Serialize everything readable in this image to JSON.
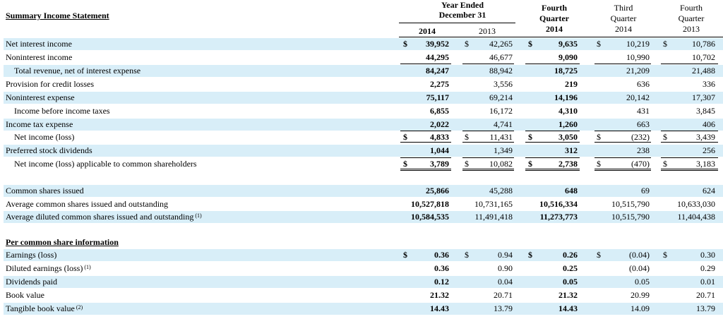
{
  "statement": {
    "title": "Summary Income Statement",
    "headers": {
      "year_ended": [
        "Year Ended",
        "December 31"
      ],
      "y2014": "2014",
      "y2013": "2013",
      "q4_2014": [
        "Fourth",
        "Quarter",
        "2014"
      ],
      "q3_2014": [
        "Third",
        "Quarter",
        "2014"
      ],
      "q4_2013": [
        "Fourth",
        "Quarter",
        "2013"
      ]
    },
    "rows": [
      {
        "label": "Net interest income",
        "indent": 0,
        "dollar": true,
        "values": [
          "39,952",
          "42,265",
          "9,635",
          "10,219",
          "10,786"
        ]
      },
      {
        "label": "Noninterest income",
        "indent": 0,
        "values": [
          "44,295",
          "46,677",
          "9,090",
          "10,990",
          "10,702"
        ]
      },
      {
        "label": "Total revenue, net of interest expense",
        "indent": 1,
        "values": [
          "84,247",
          "88,942",
          "18,725",
          "21,209",
          "21,488"
        ]
      },
      {
        "label": "Provision for credit losses",
        "indent": 0,
        "values": [
          "2,275",
          "3,556",
          "219",
          "636",
          "336"
        ]
      },
      {
        "label": "Noninterest expense",
        "indent": 0,
        "values": [
          "75,117",
          "69,214",
          "14,196",
          "20,142",
          "17,307"
        ]
      },
      {
        "label": "Income before income taxes",
        "indent": 1,
        "values": [
          "6,855",
          "16,172",
          "4,310",
          "431",
          "3,845"
        ]
      },
      {
        "label": "Income tax expense",
        "indent": 0,
        "values": [
          "2,022",
          "4,741",
          "1,260",
          "663",
          "406"
        ]
      },
      {
        "label": "Net income (loss)",
        "indent": 1,
        "dollar": true,
        "values": [
          "4,833",
          "11,431",
          "3,050",
          "(232)",
          "3,439"
        ]
      },
      {
        "label": "Preferred stock dividends",
        "indent": 0,
        "values": [
          "1,044",
          "1,349",
          "312",
          "238",
          "256"
        ]
      },
      {
        "label": "Net income (loss) applicable to common shareholders",
        "indent": 1,
        "dollar": true,
        "values": [
          "3,789",
          "10,082",
          "2,738",
          "(470)",
          "3,183"
        ]
      }
    ],
    "shares_rows": [
      {
        "label": "Common shares issued",
        "values": [
          "25,866",
          "45,288",
          "648",
          "69",
          "624"
        ]
      },
      {
        "label": "Average common shares issued and outstanding",
        "values": [
          "10,527,818",
          "10,731,165",
          "10,516,334",
          "10,515,790",
          "10,633,030"
        ]
      },
      {
        "label": "Average diluted common shares issued and outstanding",
        "note": "(1)",
        "values": [
          "10,584,535",
          "11,491,418",
          "11,273,773",
          "10,515,790",
          "11,404,438"
        ]
      }
    ],
    "per_share": {
      "title": "Per common share information",
      "rows": [
        {
          "label": "Earnings (loss)",
          "dollar": true,
          "values": [
            "0.36",
            "0.94",
            "0.26",
            "(0.04)",
            "0.30"
          ]
        },
        {
          "label": "Diluted earnings (loss)",
          "note": "(1)",
          "values": [
            "0.36",
            "0.90",
            "0.25",
            "(0.04)",
            "0.29"
          ]
        },
        {
          "label": "Dividends paid",
          "values": [
            "0.12",
            "0.04",
            "0.05",
            "0.05",
            "0.01"
          ]
        },
        {
          "label": "Book value",
          "values": [
            "21.32",
            "20.71",
            "21.32",
            "20.99",
            "20.71"
          ]
        },
        {
          "label": "Tangible book value",
          "note": "(2)",
          "values": [
            "14.43",
            "13.79",
            "14.43",
            "14.09",
            "13.79"
          ]
        }
      ]
    },
    "currency_symbol": "$",
    "colors": {
      "band": "#d8eef8"
    }
  }
}
